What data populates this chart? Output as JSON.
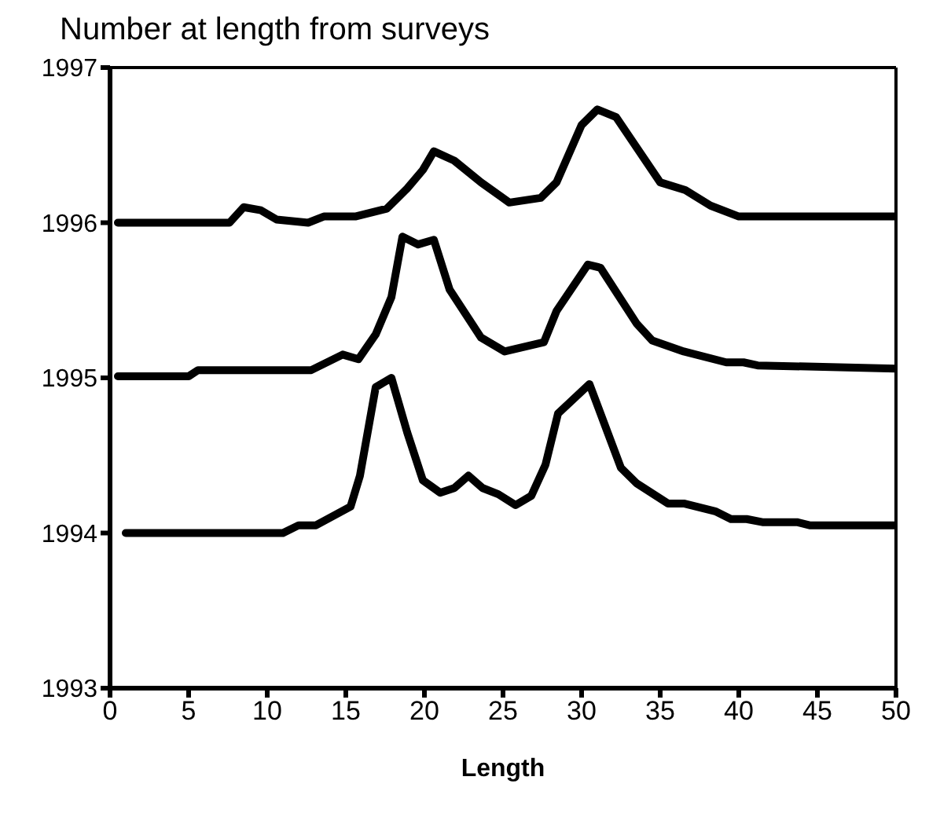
{
  "chart_data": {
    "type": "line",
    "title": "Number at length from surveys",
    "xlabel": "Length",
    "xlim": [
      0,
      50
    ],
    "xticks": [
      0,
      5,
      10,
      15,
      20,
      25,
      30,
      35,
      40,
      45,
      50
    ],
    "ylim": [
      1993,
      1997
    ],
    "yticks": [
      1993,
      1994,
      1995,
      1996,
      1997
    ],
    "grid": false,
    "marker": "none",
    "line_style": "solid",
    "series": [
      {
        "color": "#000000",
        "x": [
          0.5,
          7.6,
          8.5,
          9.6,
          10.6,
          12.6,
          13.6,
          15.6,
          17.6,
          18.9,
          19.9,
          20.6,
          21.9,
          23.6,
          25.4,
          27.4,
          28.4,
          30.0,
          31.0,
          32.2,
          35.0,
          36.6,
          38.2,
          40.0,
          50.0
        ],
        "values": [
          1996.0,
          1996.0,
          1996.1,
          1996.08,
          1996.02,
          1996.0,
          1996.04,
          1996.04,
          1996.09,
          1996.22,
          1996.34,
          1996.46,
          1996.4,
          1996.26,
          1996.13,
          1996.16,
          1996.26,
          1996.63,
          1996.73,
          1996.68,
          1996.26,
          1996.21,
          1996.11,
          1996.04,
          1996.04
        ]
      },
      {
        "color": "#000000",
        "x": [
          0.5,
          5.0,
          5.6,
          12.8,
          14.8,
          15.8,
          16.9,
          17.9,
          18.6,
          19.6,
          20.6,
          21.6,
          23.6,
          25.1,
          27.6,
          28.4,
          30.4,
          31.2,
          33.5,
          34.5,
          36.5,
          39.2,
          40.3,
          41.2,
          50.0
        ],
        "values": [
          1995.01,
          1995.01,
          1995.05,
          1995.05,
          1995.15,
          1995.12,
          1995.28,
          1995.52,
          1995.91,
          1995.86,
          1995.89,
          1995.57,
          1995.26,
          1995.17,
          1995.23,
          1995.43,
          1995.73,
          1995.71,
          1995.35,
          1995.24,
          1995.17,
          1995.1,
          1995.1,
          1995.08,
          1995.06
        ]
      },
      {
        "color": "#000000",
        "x": [
          1.0,
          11.0,
          12.0,
          13.1,
          15.3,
          15.9,
          16.9,
          17.9,
          18.9,
          19.9,
          21.0,
          21.9,
          22.8,
          23.7,
          24.7,
          25.8,
          26.8,
          27.7,
          28.5,
          30.5,
          32.5,
          33.5,
          35.5,
          36.5,
          38.5,
          39.5,
          40.5,
          41.5,
          43.7,
          44.5,
          50.0
        ],
        "values": [
          1994.0,
          1994.0,
          1994.05,
          1994.05,
          1994.17,
          1994.37,
          1994.94,
          1995.0,
          1994.65,
          1994.34,
          1994.26,
          1994.29,
          1994.37,
          1994.29,
          1994.25,
          1994.18,
          1994.24,
          1994.44,
          1994.77,
          1994.96,
          1994.42,
          1994.32,
          1994.19,
          1994.19,
          1994.14,
          1994.09,
          1994.09,
          1994.07,
          1994.07,
          1994.05,
          1994.05
        ]
      }
    ]
  }
}
